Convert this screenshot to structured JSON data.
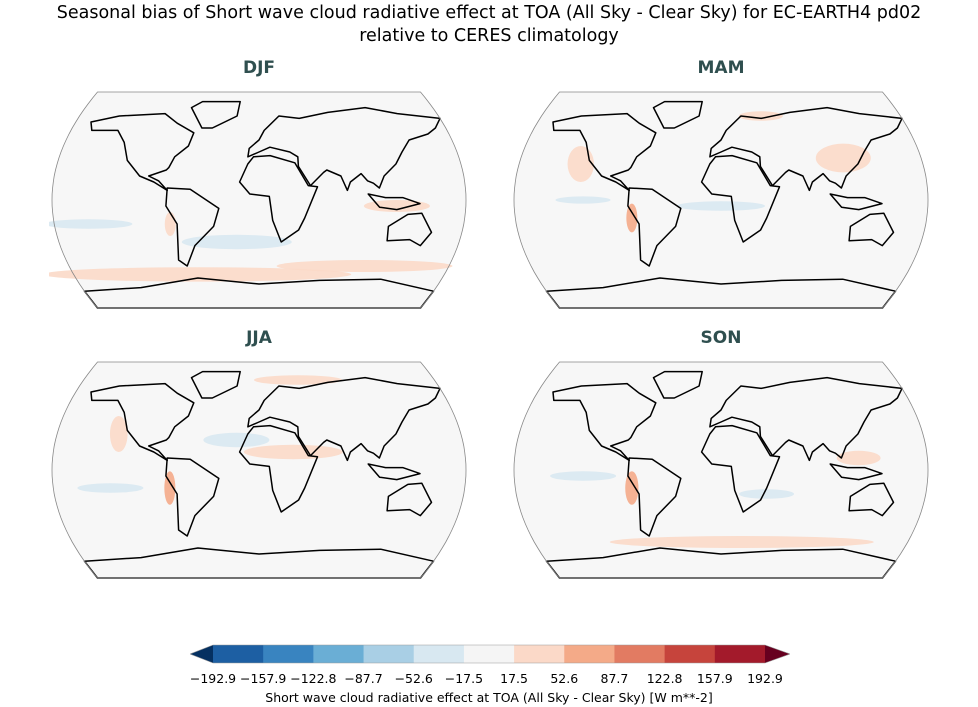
{
  "title": [
    "Seasonal bias of Short wave cloud radiative effect at TOA (All Sky - Clear Sky) for EC-EARTH4 pd02",
    "relative to CERES climatology"
  ],
  "panels": [
    {
      "label": "DJF"
    },
    {
      "label": "MAM"
    },
    {
      "label": "JJA"
    },
    {
      "label": "SON"
    }
  ],
  "chart_data": {
    "type": "heatmap",
    "title": "Seasonal bias of Short wave cloud radiative effect at TOA (All Sky - Clear Sky) for EC-EARTH4 pd02 relative to CERES climatology",
    "panels": [
      "DJF",
      "MAM",
      "JJA",
      "SON"
    ],
    "colorbar": {
      "label": "Short wave cloud radiative effect at TOA (All Sky - Clear Sky) [W m**-2]",
      "ticks": [
        "−192.9",
        "−157.9",
        "−122.8",
        "−87.7",
        "−52.6",
        "−17.5",
        "17.5",
        "52.6",
        "87.7",
        "122.8",
        "157.9",
        "192.9"
      ],
      "levels": [
        -192.9,
        -157.9,
        -122.8,
        -87.7,
        -52.6,
        -17.5,
        17.5,
        52.6,
        87.7,
        122.8,
        157.9,
        192.9
      ],
      "colors": [
        "#1d5fa3",
        "#3984c0",
        "#6aaed5",
        "#a9cfe5",
        "#d8e8f1",
        "#f5f5f5",
        "#fbd9c8",
        "#f4aa88",
        "#e27b62",
        "#c6443c",
        "#a31a2b"
      ],
      "extend_colors": {
        "min": "#053061",
        "max": "#67001f"
      },
      "extend": "both",
      "colormap": "RdBu_r"
    }
  }
}
